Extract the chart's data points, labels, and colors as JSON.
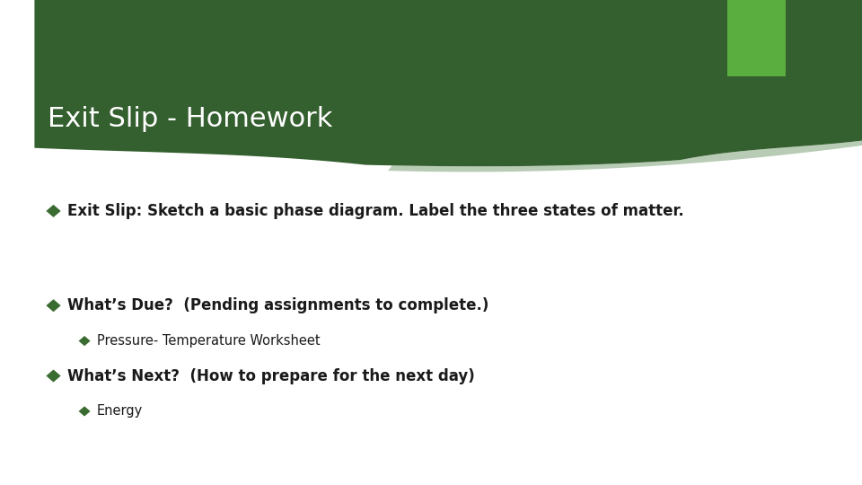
{
  "title": "Exit Slip - Homework",
  "title_color": "#FFFFFF",
  "title_fontsize": 22,
  "bg_color": "#FFFFFF",
  "banner_color": "#345f2e",
  "accent_color": "#5aad3f",
  "bullet_color": "#3a6b30",
  "bullet1": "Exit Slip: Sketch a basic phase diagram. Label the three states of matter.",
  "bullet1_fontsize": 12,
  "bullet2": "What’s Due?  (Pending assignments to complete.)",
  "bullet2_fontsize": 12,
  "sub_bullet1": "Pressure- Temperature Worksheet",
  "sub_bullet1_fontsize": 10.5,
  "bullet3": "What’s Next?  (How to prepare for the next day)",
  "bullet3_fontsize": 12,
  "sub_bullet2": "Energy",
  "sub_bullet2_fontsize": 10.5,
  "shadow_color": "#7a9a72"
}
